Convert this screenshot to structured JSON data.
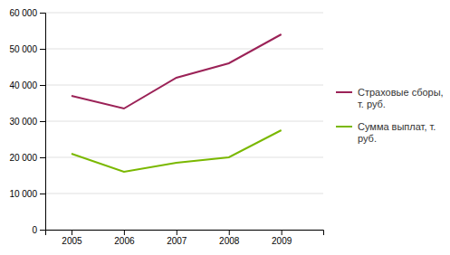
{
  "chart_data": {
    "type": "line",
    "x": [
      2005,
      2006,
      2007,
      2008,
      2009
    ],
    "series": [
      {
        "name": "Страховые сборы,\nт. руб.",
        "color": "#9B2257",
        "values": [
          37000,
          33500,
          42000,
          46000,
          54000
        ]
      },
      {
        "name": "Сумма выплат, т.\nруб.",
        "color": "#7AB800",
        "values": [
          21000,
          16000,
          18500,
          20000,
          27500
        ]
      }
    ],
    "xlim": [
      2004.5,
      2009.8
    ],
    "xticks": [
      2005,
      2006,
      2007,
      2008,
      2009
    ],
    "ylim": [
      0,
      60000
    ],
    "yticks": [
      0,
      {
        "value": 10000,
        "label": "10 000"
      },
      {
        "value": 20000,
        "label": "20 000"
      },
      {
        "value": 30000,
        "label": "30 000"
      },
      {
        "value": 40000,
        "label": "40 000"
      },
      {
        "value": 50000,
        "label": "50 000"
      },
      {
        "value": 60000,
        "label": "60 000"
      }
    ],
    "grid": true,
    "legend": "right"
  }
}
